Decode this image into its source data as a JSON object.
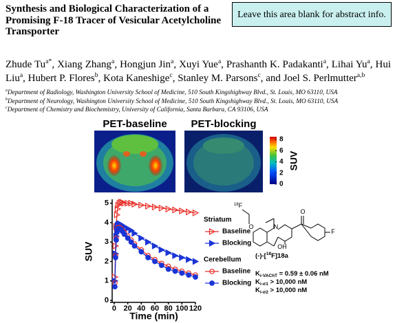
{
  "header": {
    "title": "Synthesis and Biological Characterization of a Promising F-18 Tracer of Vesicular Acetylcholine Transporter",
    "abstract_box": "Leave this area blank for abstract info."
  },
  "authors": [
    {
      "name": "Zhude Tu",
      "sup": "a*",
      "sep": ", "
    },
    {
      "name": "Xiang Zhang",
      "sup": "a",
      "sep": ", "
    },
    {
      "name": "Hongjun Jin",
      "sup": "a",
      "sep": ", "
    },
    {
      "name": "Xuyi Yue",
      "sup": "a",
      "sep": ", "
    },
    {
      "name": "Prashanth K. Padakanti",
      "sup": "a",
      "sep": ", "
    },
    {
      "name": "Lihai Yu",
      "sup": "a",
      "sep": ", "
    },
    {
      "name": "Hui Liu",
      "sup": "a",
      "sep": ", "
    },
    {
      "name": "Hubert P. Flores",
      "sup": "b",
      "sep": ", "
    },
    {
      "name": "Kota Kaneshige",
      "sup": "c",
      "sep": ", "
    },
    {
      "name": "Stanley M. Parsons",
      "sup": "c",
      "sep": ", and "
    },
    {
      "name": "Joel S. Perlmutter",
      "sup": "a,b"
    }
  ],
  "affiliations": [
    {
      "sup": "a",
      "text": "Department of Radiology, Washington University School of Medicine, 510 South Kingshighway Blvd., St. Louis, MO 63110, USA"
    },
    {
      "sup": "b",
      "text": "Department of Neurology, Washington University School of Medicine, 510 South Kingshighway Blvd., St. Louis, MO 63110, USA"
    },
    {
      "sup": "c",
      "text": "Department of Chemistry and Biochemistry, University of California, Santa Barbara, CA 93106, USA"
    }
  ],
  "pet": {
    "images": [
      "PET-baseline",
      "PET-blocking"
    ],
    "colorbar": {
      "label": "SUV",
      "lim": [
        0,
        8.5
      ],
      "ticks": [
        0,
        2,
        4,
        6,
        8
      ]
    }
  },
  "structure": {
    "atoms": [
      {
        "sup": "18",
        "text": "F"
      },
      {
        "text": "O"
      },
      {
        "text": "N"
      },
      {
        "text": "OH"
      },
      {
        "text": "O"
      },
      {
        "text": "F"
      }
    ],
    "compound": {
      "prefix": "(-)-[",
      "sup": "18",
      "suffix": "F]18a"
    },
    "ki": [
      {
        "sym": "K",
        "sub": "i-VAChT",
        "text": " = 0.59 ± 0.06 nM"
      },
      {
        "sym": "K",
        "sub": "i-σ1",
        "text": " > 10,000 nM"
      },
      {
        "sym": "K",
        "sub": "i-σ2",
        "text": " > 10,000 nM"
      }
    ]
  },
  "chart_data": {
    "type": "line",
    "xlabel": "Time (min)",
    "ylabel": "SUV",
    "xlim": [
      -3,
      120
    ],
    "ylim": [
      0,
      5.2
    ],
    "xticks": [
      0,
      20,
      40,
      60,
      80,
      100,
      120
    ],
    "yticks": [
      0,
      1,
      2,
      3,
      4,
      5
    ],
    "x": [
      1,
      2,
      3,
      4,
      5,
      6,
      8,
      10,
      12,
      15,
      20,
      25,
      30,
      40,
      50,
      60,
      70,
      80,
      90,
      100,
      110,
      120
    ],
    "series": [
      {
        "group": "Striatum",
        "name": "Baseline",
        "color": "#e8302a",
        "marker": "triangle-open",
        "values": [
          1.2,
          2.8,
          3.8,
          4.4,
          4.7,
          4.9,
          5.0,
          5.05,
          5.05,
          5.0,
          5.0,
          5.0,
          4.95,
          4.9,
          4.85,
          4.8,
          4.75,
          4.7,
          4.65,
          4.6,
          4.55,
          4.5
        ]
      },
      {
        "group": "Striatum",
        "name": "Blocking",
        "color": "#1a35d6",
        "marker": "triangle",
        "values": [
          1.0,
          2.4,
          3.3,
          3.7,
          3.85,
          3.9,
          3.95,
          3.9,
          3.85,
          3.8,
          3.7,
          3.6,
          3.45,
          3.2,
          3.0,
          2.8,
          2.6,
          2.45,
          2.3,
          2.2,
          2.1,
          2.0
        ]
      },
      {
        "group": "Cerebellum",
        "name": "Baseline",
        "color": "#e8302a",
        "marker": "circle-open",
        "values": [
          0.9,
          2.3,
          3.2,
          3.55,
          3.7,
          3.75,
          3.75,
          3.7,
          3.6,
          3.5,
          3.3,
          3.1,
          2.9,
          2.6,
          2.3,
          2.1,
          1.9,
          1.75,
          1.6,
          1.5,
          1.4,
          1.3
        ]
      },
      {
        "group": "Cerebellum",
        "name": "Blocking",
        "color": "#1a35d6",
        "marker": "circle",
        "values": [
          0.7,
          2.2,
          3.1,
          3.5,
          3.65,
          3.7,
          3.7,
          3.65,
          3.55,
          3.4,
          3.2,
          3.0,
          2.8,
          2.5,
          2.2,
          2.0,
          1.8,
          1.6,
          1.5,
          1.4,
          1.3,
          1.2
        ]
      }
    ]
  }
}
